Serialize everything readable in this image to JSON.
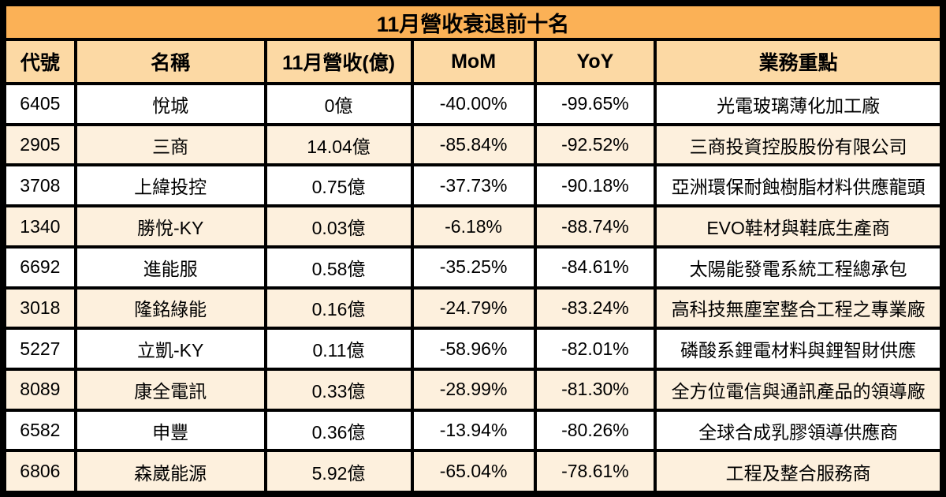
{
  "colors": {
    "title_bg": "#FBB156",
    "header_bg": "#FCD9A4",
    "row_bg": "#FFFFFF",
    "row_alt_bg": "#FDF0DD",
    "border": "#000000",
    "text": "#000000"
  },
  "chart_data": {
    "type": "table",
    "title": "11月營收衰退前十名",
    "columns": [
      "代號",
      "名稱",
      "11月營收(億)",
      "MoM",
      "YoY",
      "業務重點"
    ],
    "rows": [
      [
        "6405",
        "悅城",
        "0億",
        "-40.00%",
        "-99.65%",
        "光電玻璃薄化加工廠"
      ],
      [
        "2905",
        "三商",
        "14.04億",
        "-85.84%",
        "-92.52%",
        "三商投資控股股份有限公司"
      ],
      [
        "3708",
        "上緯投控",
        "0.75億",
        "-37.73%",
        "-90.18%",
        "亞洲環保耐蝕樹脂材料供應龍頭"
      ],
      [
        "1340",
        "勝悅-KY",
        "0.03億",
        "-6.18%",
        "-88.74%",
        "EVO鞋材與鞋底生產商"
      ],
      [
        "6692",
        "進能服",
        "0.58億",
        "-35.25%",
        "-84.61%",
        "太陽能發電系統工程總承包"
      ],
      [
        "3018",
        "隆銘綠能",
        "0.16億",
        "-24.79%",
        "-83.24%",
        "高科技無塵室整合工程之專業廠"
      ],
      [
        "5227",
        "立凱-KY",
        "0.11億",
        "-58.96%",
        "-82.01%",
        "磷酸系鋰電材料與鋰智財供應"
      ],
      [
        "8089",
        "康全電訊",
        "0.33億",
        "-28.99%",
        "-81.30%",
        "全方位電信與通訊產品的領導廠"
      ],
      [
        "6582",
        "申豐",
        "0.36億",
        "-13.94%",
        "-80.26%",
        "全球合成乳膠領導供應商"
      ],
      [
        "6806",
        "森崴能源",
        "5.92億",
        "-65.04%",
        "-78.61%",
        "工程及整合服務商"
      ]
    ]
  }
}
